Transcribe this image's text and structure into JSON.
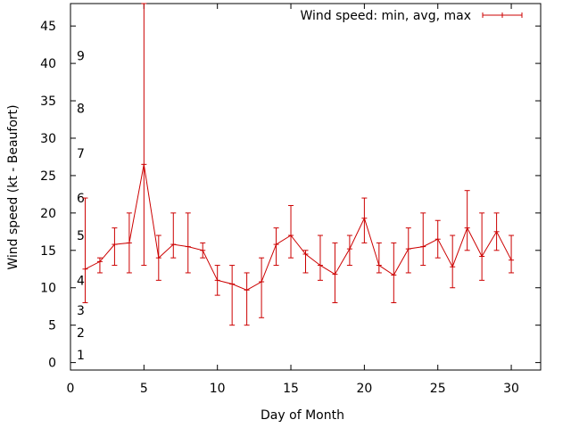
{
  "chart_data": {
    "type": "line",
    "xlabel": "Day of Month",
    "ylabel": "Wind speed (kt - Beaufort)",
    "xlim": [
      0,
      32
    ],
    "ylim": [
      -1,
      48
    ],
    "x_ticks": [
      0,
      5,
      10,
      15,
      20,
      25,
      30
    ],
    "y_ticks": [
      0,
      5,
      10,
      15,
      20,
      25,
      30,
      35,
      40,
      45
    ],
    "beaufort_labels": [
      {
        "label": "1",
        "y": 1
      },
      {
        "label": "2",
        "y": 4
      },
      {
        "label": "3",
        "y": 7
      },
      {
        "label": "4",
        "y": 11
      },
      {
        "label": "5",
        "y": 17
      },
      {
        "label": "6",
        "y": 22
      },
      {
        "label": "7",
        "y": 28
      },
      {
        "label": "8",
        "y": 34
      },
      {
        "label": "9",
        "y": 41
      }
    ],
    "grid": false,
    "legend_position": "top-right",
    "series": [
      {
        "name": "Wind speed: min, avg, max",
        "color": "#cc0000",
        "points": [
          {
            "x": 1,
            "avg": 12.5,
            "min": 8,
            "max": 22
          },
          {
            "x": 2,
            "avg": 13.5,
            "min": 12,
            "max": 14
          },
          {
            "x": 3,
            "avg": 15.8,
            "min": 13,
            "max": 18
          },
          {
            "x": 4,
            "avg": 16,
            "min": 12,
            "max": 20
          },
          {
            "x": 5,
            "avg": 26.5,
            "min": 13,
            "max": 48
          },
          {
            "x": 6,
            "avg": 14,
            "min": 11,
            "max": 17
          },
          {
            "x": 7,
            "avg": 15.8,
            "min": 14,
            "max": 20
          },
          {
            "x": 8,
            "avg": 15.5,
            "min": 12,
            "max": 20
          },
          {
            "x": 9,
            "avg": 15,
            "min": 14,
            "max": 16
          },
          {
            "x": 10,
            "avg": 11,
            "min": 9,
            "max": 13
          },
          {
            "x": 11,
            "avg": 10.5,
            "min": 5,
            "max": 13
          },
          {
            "x": 12,
            "avg": 9.7,
            "min": 5,
            "max": 12
          },
          {
            "x": 13,
            "avg": 10.8,
            "min": 6,
            "max": 14
          },
          {
            "x": 14,
            "avg": 15.8,
            "min": 13,
            "max": 18
          },
          {
            "x": 15,
            "avg": 17,
            "min": 14,
            "max": 21
          },
          {
            "x": 16,
            "avg": 14.5,
            "min": 12,
            "max": 15
          },
          {
            "x": 17,
            "avg": 13,
            "min": 11,
            "max": 17
          },
          {
            "x": 18,
            "avg": 11.8,
            "min": 8,
            "max": 16
          },
          {
            "x": 19,
            "avg": 15.2,
            "min": 13,
            "max": 17
          },
          {
            "x": 20,
            "avg": 19.3,
            "min": 16,
            "max": 22
          },
          {
            "x": 21,
            "avg": 13,
            "min": 12,
            "max": 16
          },
          {
            "x": 22,
            "avg": 11.7,
            "min": 8,
            "max": 16
          },
          {
            "x": 23,
            "avg": 15.2,
            "min": 12,
            "max": 18
          },
          {
            "x": 24,
            "avg": 15.5,
            "min": 13,
            "max": 20
          },
          {
            "x": 25,
            "avg": 16.5,
            "min": 14,
            "max": 19
          },
          {
            "x": 26,
            "avg": 12.8,
            "min": 10,
            "max": 17
          },
          {
            "x": 27,
            "avg": 18,
            "min": 15,
            "max": 23
          },
          {
            "x": 28,
            "avg": 14.2,
            "min": 11,
            "max": 20
          },
          {
            "x": 29,
            "avg": 17.5,
            "min": 15,
            "max": 20
          },
          {
            "x": 30,
            "avg": 13.7,
            "min": 12,
            "max": 17
          }
        ]
      }
    ]
  }
}
